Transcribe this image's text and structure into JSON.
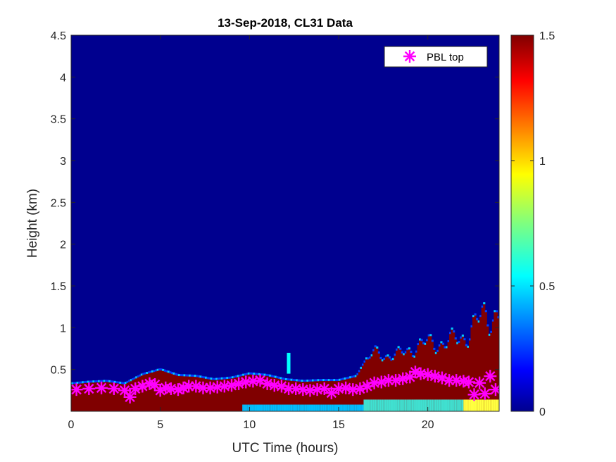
{
  "chart_data": {
    "type": "heatmap",
    "title": "13-Sep-2018, CL31 Data",
    "xlabel": "UTC Time (hours)",
    "ylabel": "Height (km)",
    "xlim": [
      0,
      24
    ],
    "ylim": [
      0,
      4.5
    ],
    "xticks": [
      "0",
      "5",
      "10",
      "15",
      "20"
    ],
    "yticks": [
      "0.5",
      "1",
      "1.5",
      "2",
      "2.5",
      "3",
      "3.5",
      "4",
      "4.5"
    ],
    "colorbar": {
      "range": [
        0,
        1.5
      ],
      "ticks": [
        "0",
        "0.5",
        "1",
        "1.5"
      ],
      "colormap": "jet"
    },
    "legend": {
      "placement": "top-right",
      "entries": [
        "PBL top"
      ]
    },
    "series": [
      {
        "name": "PBL top",
        "marker": "asterisk",
        "color": "#ff00ff",
        "x": [
          0.3,
          1.0,
          1.7,
          2.4,
          3.0,
          3.3,
          3.6,
          4.0,
          4.4,
          4.7,
          5.0,
          5.3,
          5.6,
          6.0,
          6.3,
          6.6,
          7.0,
          7.4,
          7.8,
          8.2,
          8.6,
          9.0,
          9.4,
          9.8,
          10.2,
          10.6,
          11.0,
          11.4,
          11.8,
          12.2,
          12.6,
          13.0,
          13.4,
          13.8,
          14.2,
          14.6,
          15.0,
          15.4,
          15.8,
          16.2,
          16.6,
          17.0,
          17.4,
          17.8,
          18.2,
          18.6,
          19.0,
          19.3,
          19.6,
          20.0,
          20.4,
          20.8,
          21.2,
          21.6,
          22.0,
          22.3,
          22.6,
          22.9,
          23.2,
          23.5,
          23.8
        ],
        "y": [
          0.26,
          0.27,
          0.28,
          0.27,
          0.25,
          0.17,
          0.27,
          0.3,
          0.33,
          0.32,
          0.25,
          0.28,
          0.27,
          0.26,
          0.28,
          0.3,
          0.3,
          0.28,
          0.28,
          0.29,
          0.3,
          0.31,
          0.33,
          0.35,
          0.36,
          0.37,
          0.33,
          0.31,
          0.3,
          0.27,
          0.27,
          0.26,
          0.25,
          0.26,
          0.27,
          0.22,
          0.27,
          0.28,
          0.26,
          0.27,
          0.3,
          0.34,
          0.35,
          0.37,
          0.37,
          0.39,
          0.41,
          0.47,
          0.45,
          0.44,
          0.42,
          0.4,
          0.37,
          0.37,
          0.36,
          0.35,
          0.2,
          0.34,
          0.21,
          0.42,
          0.26
        ]
      }
    ],
    "field": {
      "low_level_signal_top_km": [
        [
          0,
          0.33
        ],
        [
          1,
          0.35
        ],
        [
          2,
          0.36
        ],
        [
          3,
          0.33
        ],
        [
          4,
          0.44
        ],
        [
          5,
          0.5
        ],
        [
          6,
          0.43
        ],
        [
          7,
          0.42
        ],
        [
          8,
          0.38
        ],
        [
          9,
          0.4
        ],
        [
          10,
          0.45
        ],
        [
          11,
          0.43
        ],
        [
          12,
          0.38
        ],
        [
          13,
          0.36
        ],
        [
          14,
          0.37
        ],
        [
          15,
          0.37
        ],
        [
          16,
          0.42
        ],
        [
          17,
          0.8
        ],
        [
          18,
          0.72
        ],
        [
          19,
          0.85
        ],
        [
          20,
          0.95
        ],
        [
          21,
          0.95
        ],
        [
          22,
          1.05
        ],
        [
          23,
          1.35
        ],
        [
          24,
          1.48
        ]
      ],
      "isolated_plume": {
        "x_hours": 12.1,
        "height_top_km": 0.7
      }
    }
  }
}
